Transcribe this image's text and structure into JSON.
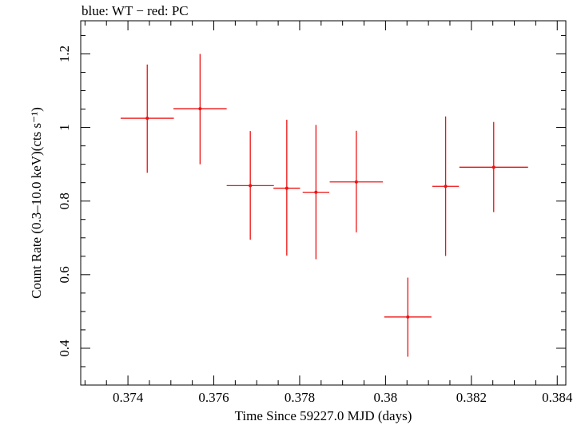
{
  "chart_data": {
    "type": "scatter",
    "title": "blue: WT − red: PC",
    "xlabel": "Time Since 59227.0 MJD (days)",
    "ylabel": "Count Rate (0.3–10.0 keV)(cts s⁻¹)",
    "xlim": [
      0.3729,
      0.3842
    ],
    "ylim": [
      0.3,
      1.29
    ],
    "x_ticks": [
      {
        "value": 0.374,
        "label": "0.374"
      },
      {
        "value": 0.376,
        "label": "0.376"
      },
      {
        "value": 0.378,
        "label": "0.378"
      },
      {
        "value": 0.38,
        "label": "0.38"
      },
      {
        "value": 0.382,
        "label": "0.382"
      },
      {
        "value": 0.384,
        "label": "0.384"
      }
    ],
    "y_ticks": [
      {
        "value": 0.4,
        "label": "0.4"
      },
      {
        "value": 0.6,
        "label": "0.6"
      },
      {
        "value": 0.8,
        "label": "0.8"
      },
      {
        "value": 1.0,
        "label": "1"
      },
      {
        "value": 1.2,
        "label": "1.2"
      }
    ],
    "series": [
      {
        "name": "PC",
        "color": "#ee1111",
        "points": [
          {
            "x": 0.37445,
            "y": 1.025,
            "xerr": 0.00062,
            "yerr_lo": 0.148,
            "yerr_hi": 0.146
          },
          {
            "x": 0.37568,
            "y": 1.051,
            "xerr": 0.00062,
            "yerr_lo": 0.151,
            "yerr_hi": 0.149
          },
          {
            "x": 0.37685,
            "y": 0.842,
            "xerr": 0.00055,
            "yerr_lo": 0.147,
            "yerr_hi": 0.148
          },
          {
            "x": 0.3777,
            "y": 0.835,
            "xerr": 0.00031,
            "yerr_lo": 0.183,
            "yerr_hi": 0.186
          },
          {
            "x": 0.37838,
            "y": 0.824,
            "xerr": 0.00031,
            "yerr_lo": 0.182,
            "yerr_hi": 0.183
          },
          {
            "x": 0.37932,
            "y": 0.852,
            "xerr": 0.00062,
            "yerr_lo": 0.137,
            "yerr_hi": 0.139
          },
          {
            "x": 0.38052,
            "y": 0.485,
            "xerr": 0.00055,
            "yerr_lo": 0.108,
            "yerr_hi": 0.107
          },
          {
            "x": 0.3814,
            "y": 0.84,
            "xerr": 0.00031,
            "yerr_lo": 0.189,
            "yerr_hi": 0.19
          },
          {
            "x": 0.38252,
            "y": 0.892,
            "xerr": 0.0008,
            "yerr_lo": 0.122,
            "yerr_hi": 0.123
          }
        ]
      }
    ]
  }
}
